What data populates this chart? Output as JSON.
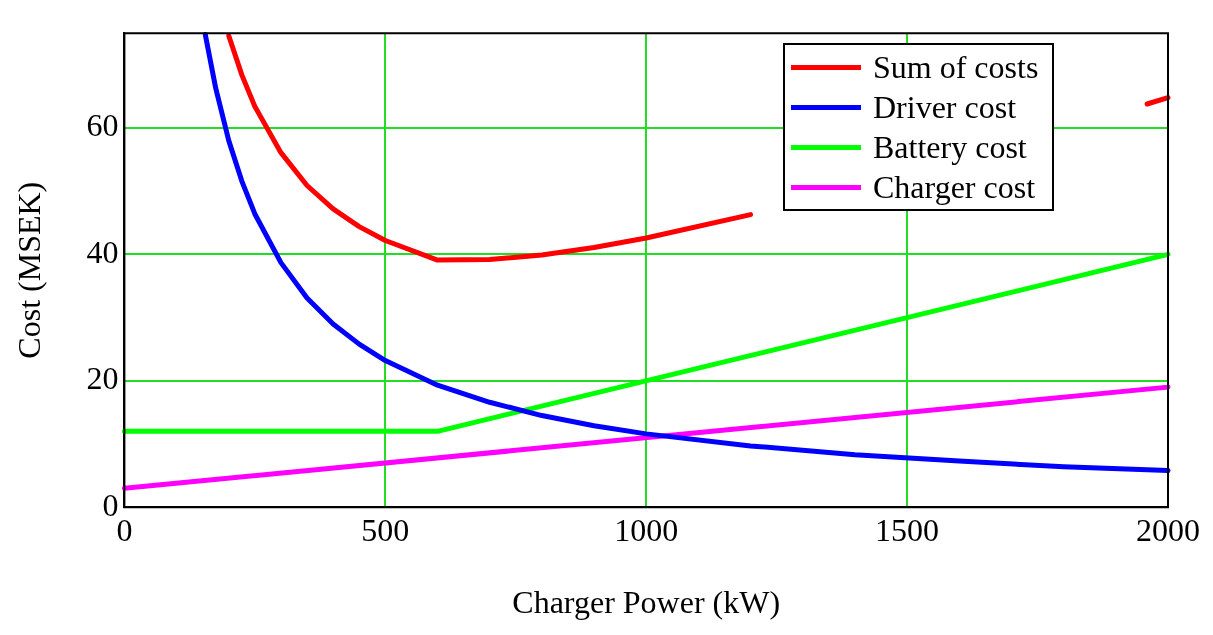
{
  "chart_data": {
    "type": "line",
    "xlabel": "Charger Power (kW)",
    "ylabel": "Cost (MSEK)",
    "xlim": [
      0,
      2000
    ],
    "xticks": [
      0,
      500,
      1000,
      1500,
      2000
    ],
    "ylim": [
      0,
      75
    ],
    "yticks": [
      0,
      20,
      40,
      60
    ],
    "grid": true,
    "legend": "top right",
    "marker": "none",
    "line_style": "solid",
    "series": [
      {
        "name": "Sum of costs",
        "color": "#ff0000",
        "x": [
          200,
          225,
          250,
          300,
          350,
          400,
          450,
          500,
          600,
          700,
          800,
          900,
          1000,
          1200,
          1400,
          1600,
          1800,
          1960,
          2000
        ],
        "values": [
          74.6,
          68.4,
          63.4,
          56.1,
          50.9,
          47.2,
          44.4,
          42.2,
          39.1,
          39.2,
          39.9,
          41.1,
          42.6,
          46.3,
          null,
          null,
          null,
          63.8,
          64.8
        ]
      },
      {
        "name": "Driver cost",
        "color": "#0000ff",
        "x": [
          155,
          175,
          200,
          225,
          250,
          300,
          350,
          400,
          450,
          500,
          600,
          700,
          800,
          900,
          1000,
          1200,
          1400,
          1600,
          1800,
          2000
        ],
        "values": [
          74.8,
          66.3,
          58,
          51.6,
          46.4,
          38.7,
          33.1,
          29,
          25.8,
          23.2,
          19.3,
          16.6,
          14.5,
          12.9,
          11.6,
          9.7,
          8.3,
          7.3,
          6.4,
          5.8
        ]
      },
      {
        "name": "Battery cost",
        "color": "#00ff00",
        "x": [
          0,
          600,
          2000
        ],
        "values": [
          12,
          12,
          40
        ]
      },
      {
        "name": "Charger cost",
        "color": "#ff00ff",
        "x": [
          0,
          2000
        ],
        "values": [
          3,
          19
        ]
      }
    ]
  }
}
